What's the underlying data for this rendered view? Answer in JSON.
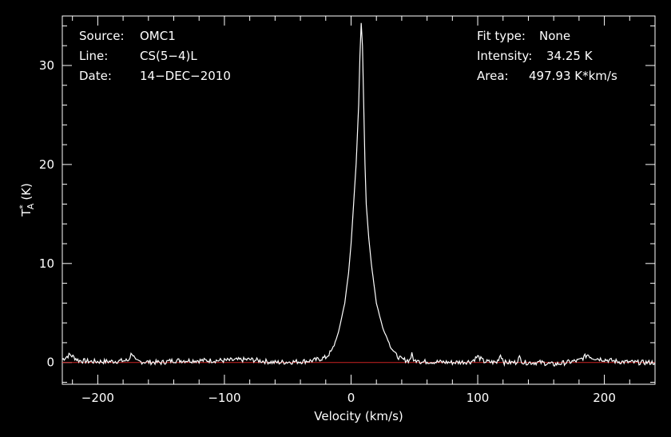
{
  "chart_data": {
    "type": "line",
    "xlabel": "Velocity (km/s)",
    "ylabel_main": "T",
    "ylabel_sup": "*",
    "ylabel_sub": "A",
    "ylabel_unit": "(K)",
    "xlim": [
      -228,
      240
    ],
    "ylim": [
      -2.2,
      35
    ],
    "xticks": [
      -200,
      -100,
      0,
      100,
      200
    ],
    "xtick_labels": [
      "−200",
      "−100",
      "0",
      "100",
      "200"
    ],
    "yticks": [
      0,
      10,
      20,
      30
    ],
    "ytick_labels": [
      "0",
      "10",
      "20",
      "30"
    ],
    "colors": {
      "background": "#000000",
      "spectrum": "#ffffff",
      "baseline": "#cc2222",
      "axes": "#ffffff"
    },
    "baseline_value": 0,
    "series": [
      {
        "x": [
          -228,
          -222,
          -215,
          -205,
          -190,
          -176,
          -173,
          -170,
          -150,
          -140,
          -100,
          -80,
          -60,
          -40,
          -30,
          -20,
          -15,
          -10,
          -5,
          -2,
          0,
          2,
          4,
          6,
          7,
          8,
          9,
          10,
          11,
          12,
          14,
          16,
          18,
          20,
          25,
          30,
          35,
          40,
          46,
          48,
          50,
          53,
          55,
          60,
          80,
          95,
          100,
          105,
          115,
          118,
          121,
          130,
          133,
          136,
          150,
          160,
          170,
          180,
          187,
          190,
          200,
          210,
          225,
          240
        ],
        "y": [
          0.3,
          0.8,
          0.2,
          0.1,
          0.1,
          0.2,
          1.0,
          0.1,
          0.0,
          0.2,
          0.2,
          0.3,
          0.0,
          0.1,
          0.2,
          0.5,
          1.2,
          3.0,
          6.0,
          9.0,
          12.0,
          16.0,
          20.0,
          26.0,
          31.0,
          34.25,
          32.0,
          26.0,
          20.0,
          16.0,
          12.5,
          10.0,
          8.0,
          6.0,
          3.5,
          2.0,
          0.8,
          0.3,
          0.2,
          0.8,
          0.1,
          0.4,
          0.0,
          0.1,
          0.0,
          0.1,
          0.6,
          0.1,
          0.0,
          0.8,
          0.0,
          0.0,
          0.5,
          0.0,
          0.0,
          -0.2,
          0.0,
          0.2,
          0.8,
          0.5,
          0.3,
          0.1,
          0.0,
          0.0
        ]
      }
    ]
  },
  "info_left": [
    {
      "key": "Source:",
      "value": "OMC1"
    },
    {
      "key": "Line:",
      "value": "CS(5−4)L"
    },
    {
      "key": "Date:",
      "value": "14−DEC−2010"
    }
  ],
  "info_right": [
    {
      "key": "Fit type:",
      "value": "None"
    },
    {
      "key": "Intensity:",
      "value": "34.25 K"
    },
    {
      "key": "Area:",
      "value": "497.93 K*km/s"
    }
  ]
}
